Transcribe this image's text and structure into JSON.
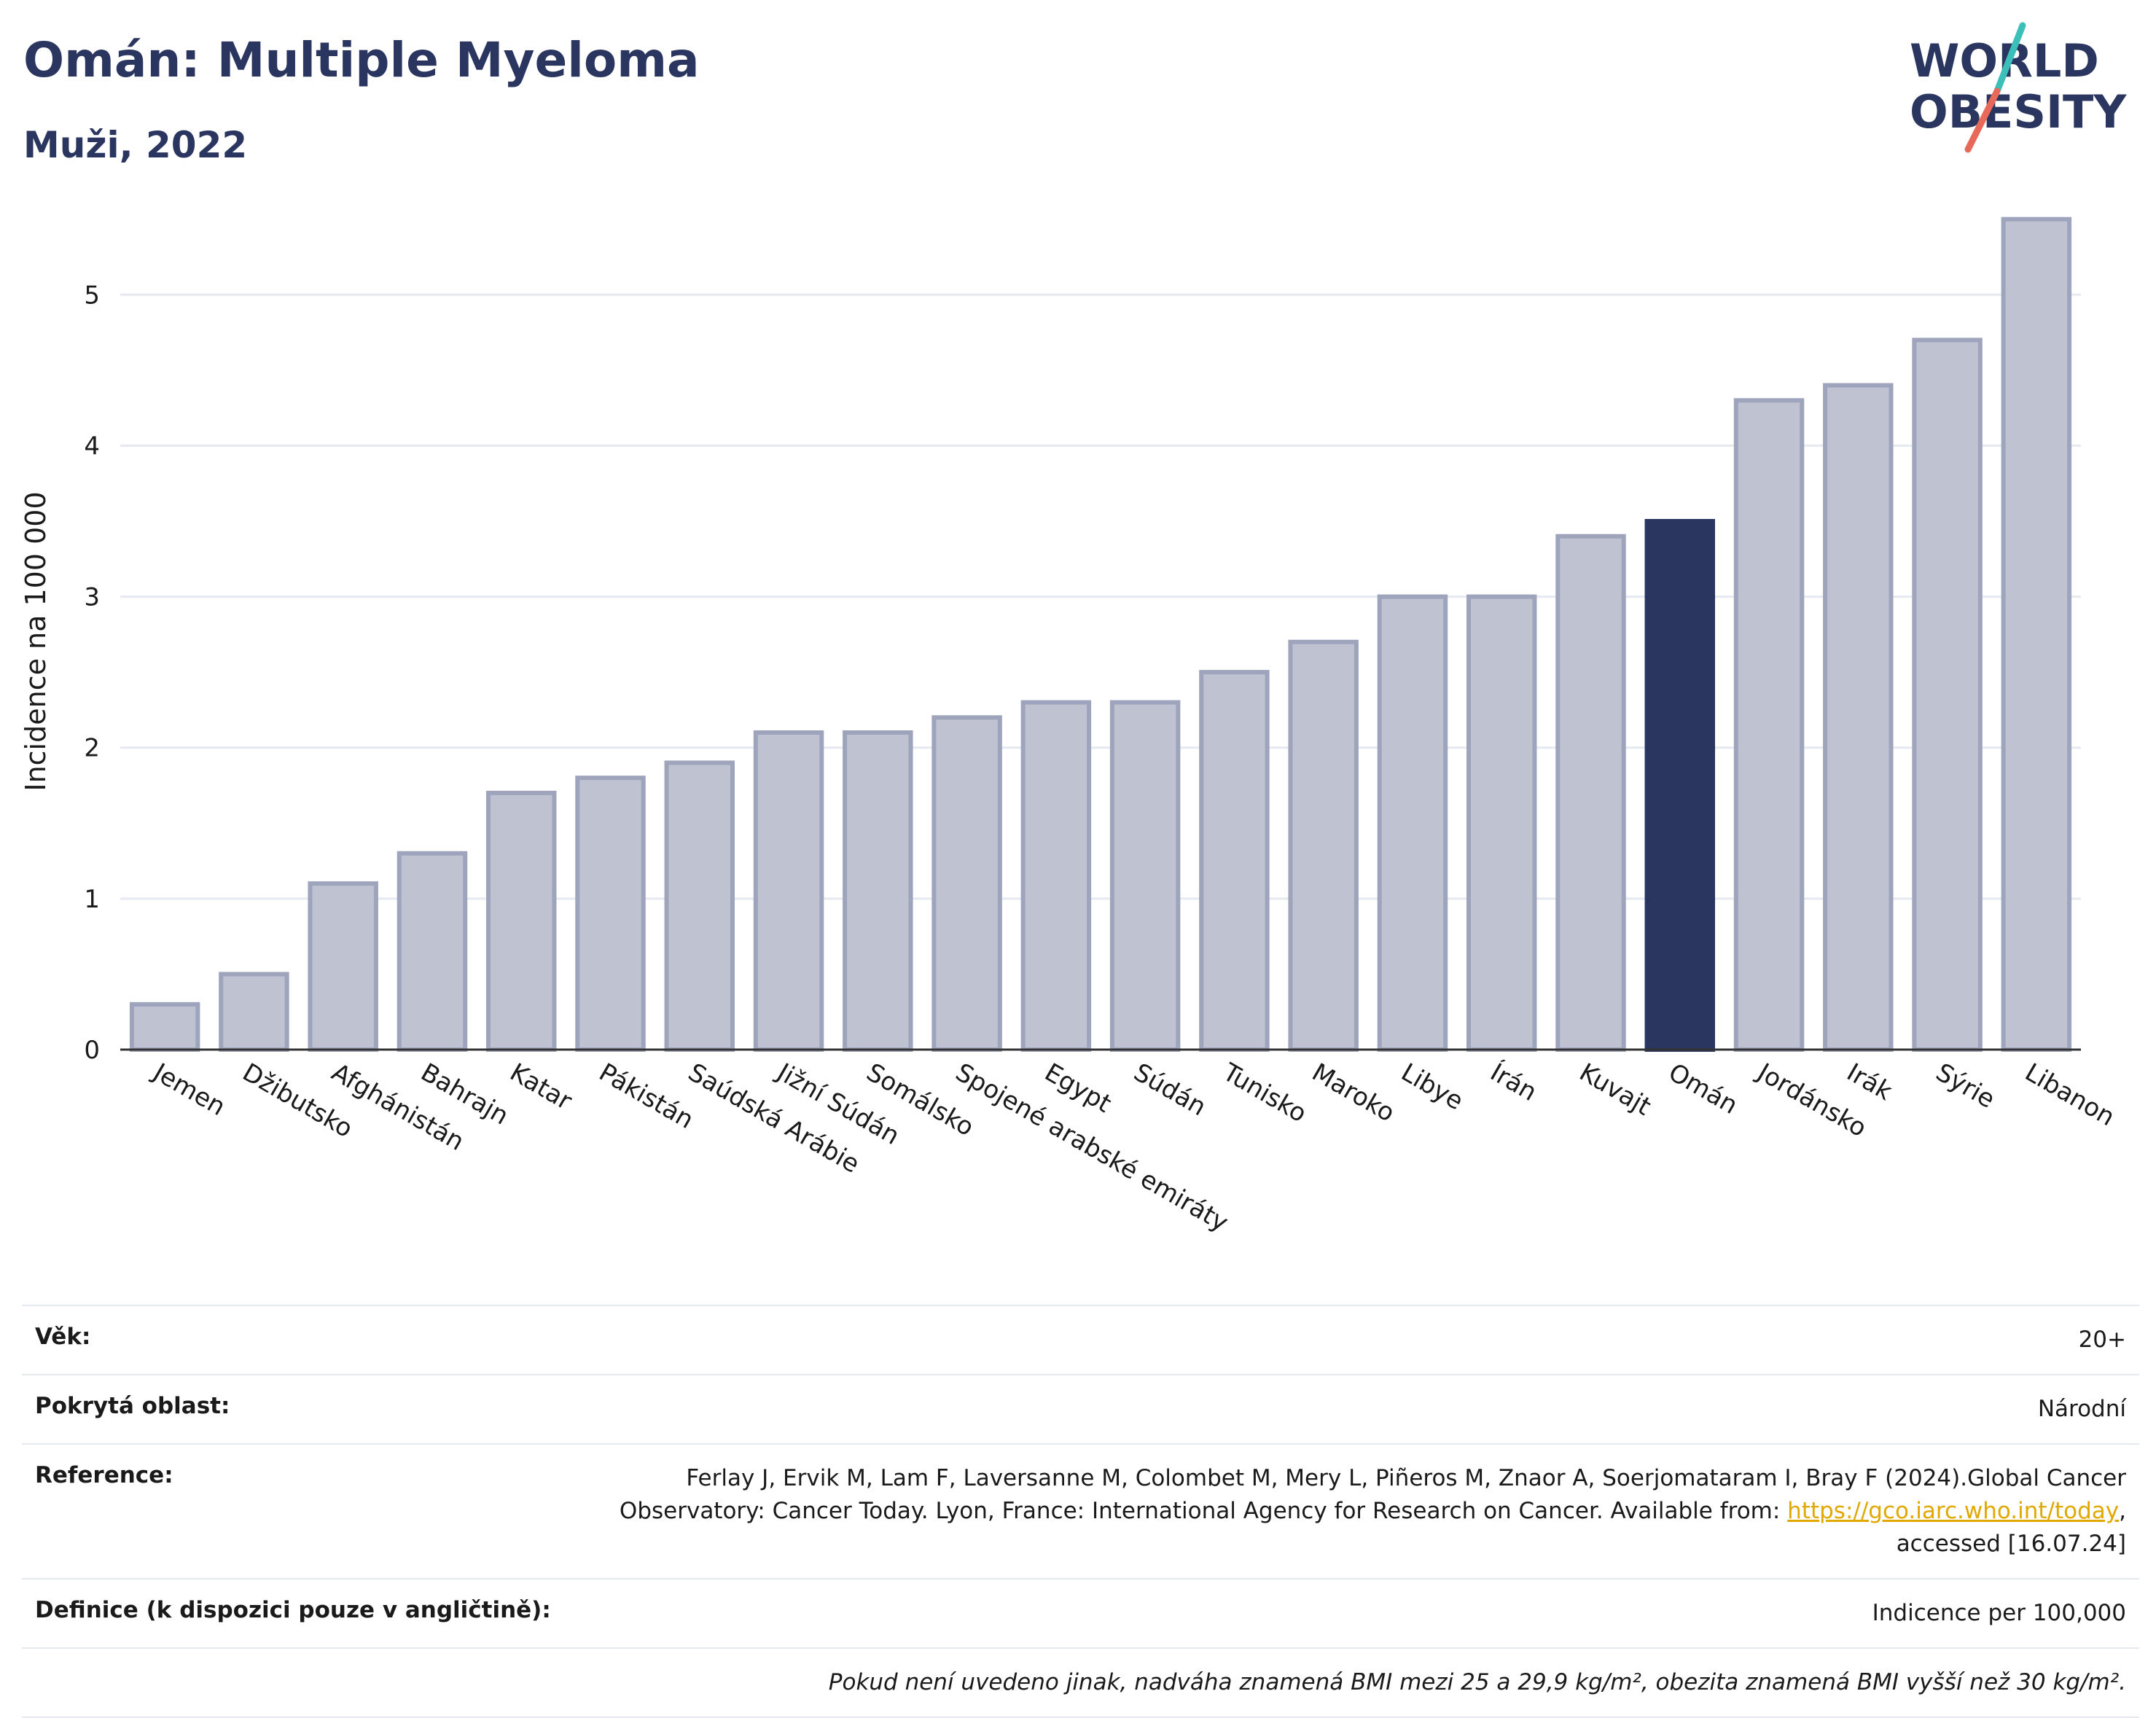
{
  "header": {
    "title": "Omán: Multiple Myeloma",
    "subtitle": "Muži, 2022"
  },
  "logo": {
    "line1": "WORLD",
    "line2": "OBESITY",
    "colors": {
      "text": "#2a3560",
      "slash_teal": "#3bbfb8",
      "slash_red": "#e8685a"
    }
  },
  "colors": {
    "bar_fill": "#bec2d1",
    "bar_stroke": "#9ea4bc",
    "highlight": "#2a3560",
    "grid": "#e6e9f0"
  },
  "chart_data": {
    "type": "bar",
    "title": "Omán: Multiple Myeloma",
    "ylabel": "Incidence na 100 000",
    "xlabel": "",
    "ylim": [
      0,
      5.6
    ],
    "yticks": [
      0,
      1,
      2,
      3,
      4,
      5
    ],
    "grid": true,
    "highlight": "Omán",
    "categories": [
      "Jemen",
      "Džibutsko",
      "Afghánistán",
      "Bahrajn",
      "Katar",
      "Pákistán",
      "Saúdská Arábie",
      "Jižní Súdán",
      "Somálsko",
      "Spojené arabské emiráty",
      "Egypt",
      "Súdán",
      "Tunisko",
      "Maroko",
      "Libye",
      "Írán",
      "Kuvajt",
      "Omán",
      "Jordánsko",
      "Irák",
      "Sýrie",
      "Libanon"
    ],
    "values": [
      0.3,
      0.5,
      1.1,
      1.3,
      1.7,
      1.8,
      1.9,
      2.1,
      2.1,
      2.2,
      2.3,
      2.3,
      2.5,
      2.7,
      3.0,
      3.0,
      3.4,
      3.5,
      4.3,
      4.4,
      4.7,
      5.5
    ]
  },
  "info": {
    "rows": [
      {
        "label": "Věk:",
        "value": "20+"
      },
      {
        "label": "Pokrytá oblast:",
        "value": "Národní"
      },
      {
        "label": "Reference:",
        "value_pre": "Ferlay J, Ervik M, Lam F, Laversanne M, Colombet M, Mery L, Piñeros M, Znaor A, Soerjomataram I, Bray F (2024).Global Cancer Observatory: Cancer Today. Lyon, France: International Agency for Research on Cancer. Available from: ",
        "link": "https://gco.iarc.who.int/today",
        "value_post": ", accessed [16.07.24]"
      },
      {
        "label": "Definice (k dispozici pouze v angličtině):",
        "value": "Indicence per 100,000"
      }
    ],
    "note": "Pokud není uvedeno jinak, nadváha znamená BMI mezi 25 a 29,9 kg/m², obezita znamená BMI vyšší než 30 kg/m²."
  }
}
